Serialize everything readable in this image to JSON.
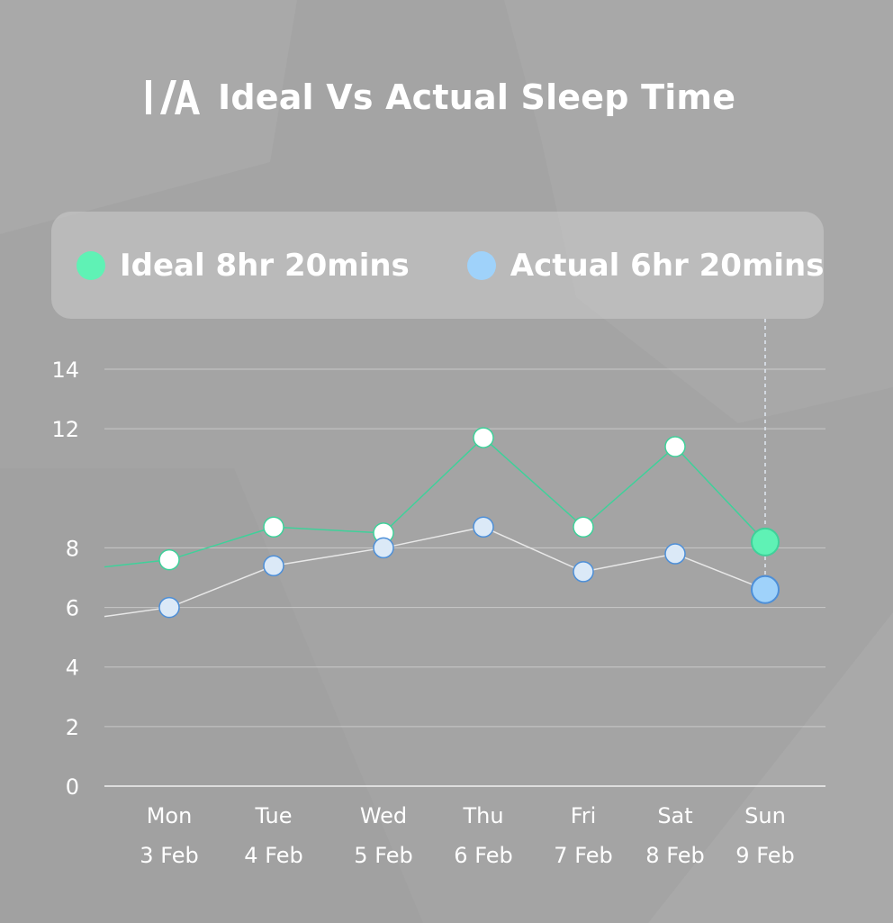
{
  "header": {
    "logo_text": "I/A",
    "title": "Ideal Vs Actual Sleep Time"
  },
  "legend": {
    "ideal_label": "Ideal 8hr 20mins",
    "actual_label": "Actual 6hr 20mins"
  },
  "colors": {
    "background": "#a4a4a4",
    "ideal": "#5ff2b5",
    "actual": "#9fd2fa",
    "ideal_line": "#3fd19a",
    "actual_line": "#e8e8e8"
  },
  "chart_data": {
    "type": "line",
    "title": "Ideal Vs Actual Sleep Time",
    "xlabel": "",
    "ylabel": "",
    "ylim": [
      0,
      14
    ],
    "yticks": [
      0,
      2,
      4,
      6,
      8,
      12,
      14
    ],
    "grid": true,
    "legend_position": "top",
    "categories": [
      "Mon",
      "Tue",
      "Wed",
      "Thu",
      "Fri",
      "Sat",
      "Sun"
    ],
    "dates": [
      "3 Feb",
      "4 Feb",
      "5 Feb",
      "6 Feb",
      "7 Feb",
      "8 Feb",
      "9 Feb"
    ],
    "highlighted_category": "Sun",
    "series": [
      {
        "name": "Ideal",
        "values": [
          7.6,
          8.7,
          8.5,
          11.7,
          8.7,
          11.4,
          8.2
        ]
      },
      {
        "name": "Actual",
        "values": [
          6.0,
          7.4,
          8.0,
          8.7,
          7.2,
          7.8,
          6.6
        ]
      }
    ]
  }
}
